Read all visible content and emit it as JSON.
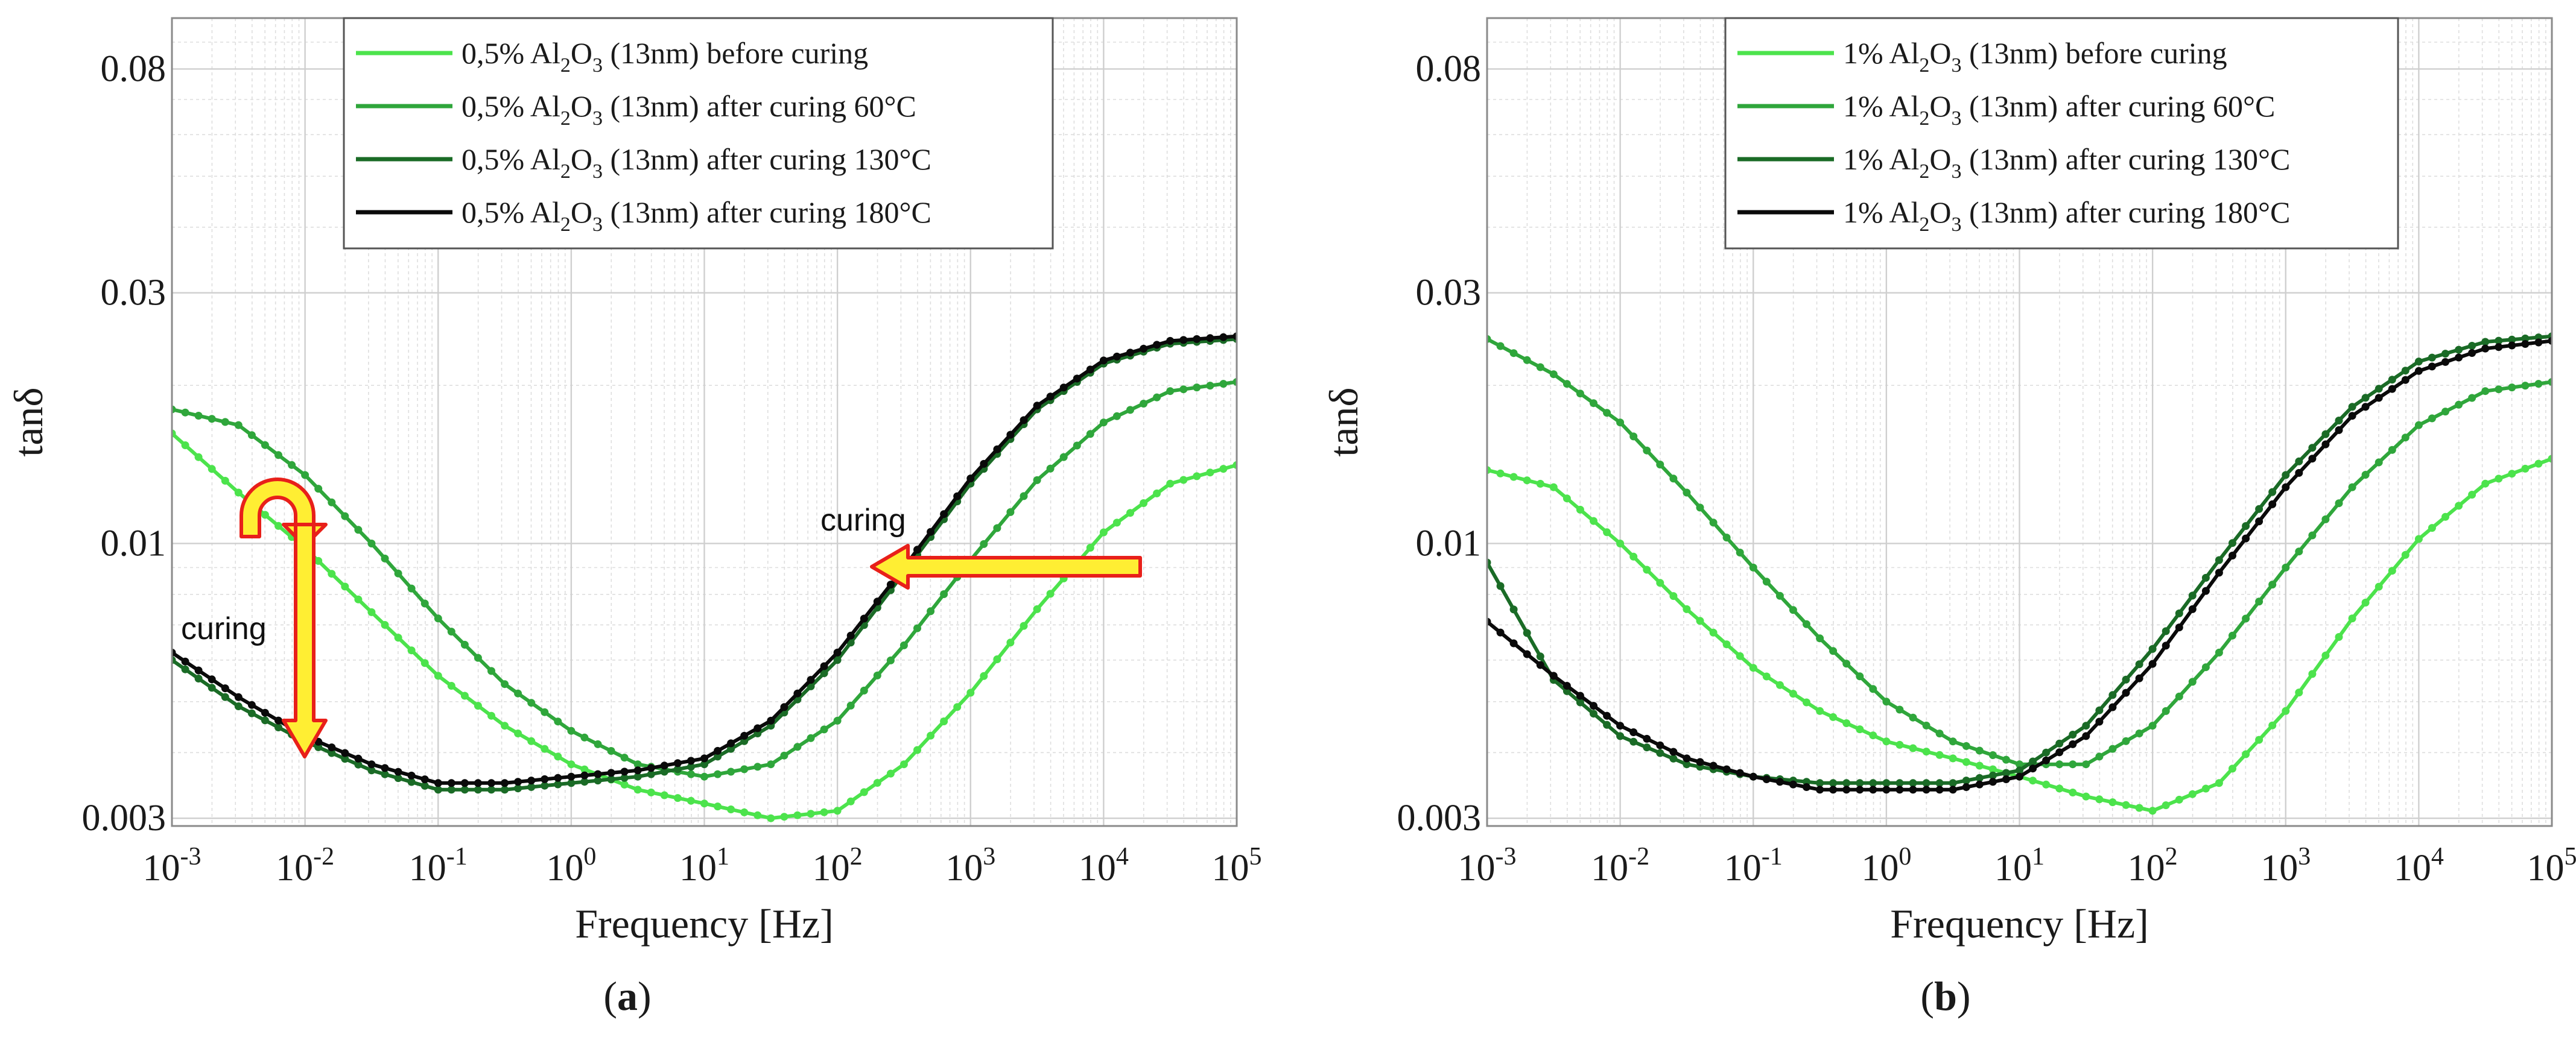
{
  "chart_data": [
    {
      "type": "line",
      "panel_label": "a",
      "title": "",
      "xlabel": "Frequency [Hz]",
      "ylabel": "tanδ",
      "xscale": "log",
      "yscale": "log",
      "xlim": [
        0.001,
        100000
      ],
      "ylim": [
        0.0029,
        0.1
      ],
      "x_ticks": [
        {
          "base": "10",
          "exp": "-3"
        },
        {
          "base": "10",
          "exp": "-2"
        },
        {
          "base": "10",
          "exp": "-1"
        },
        {
          "base": "10",
          "exp": "0"
        },
        {
          "base": "10",
          "exp": "1"
        },
        {
          "base": "10",
          "exp": "2"
        },
        {
          "base": "10",
          "exp": "3"
        },
        {
          "base": "10",
          "exp": "4"
        },
        {
          "base": "10",
          "exp": "5"
        }
      ],
      "y_ticks": [
        {
          "value": 0.003,
          "label": "0.003"
        },
        {
          "value": 0.01,
          "label": "0.01"
        },
        {
          "value": 0.03,
          "label": "0.03"
        },
        {
          "value": 0.08,
          "label": "0.08"
        }
      ],
      "grid": true,
      "legend_position": "top-center",
      "series": [
        {
          "name": "0,5% Al2O3 (13nm) before curing",
          "legend": {
            "pre": "0,5% Al",
            "sub1": "2",
            "mid": "O",
            "sub2": "3",
            "post": " (13nm) before curing"
          },
          "color": "#4ce34c",
          "points": [
            [
              -3,
              0.0162
            ],
            [
              -2.5,
              0.0125
            ],
            [
              -2,
              0.0098
            ],
            [
              -1.5,
              0.0074
            ],
            [
              -1,
              0.0056
            ],
            [
              -0.5,
              0.0045
            ],
            [
              0,
              0.0038
            ],
            [
              0.5,
              0.0034
            ],
            [
              1,
              0.0032
            ],
            [
              1.5,
              0.003
            ],
            [
              2,
              0.0031
            ],
            [
              2.5,
              0.0038
            ],
            [
              3,
              0.0052
            ],
            [
              3.5,
              0.0075
            ],
            [
              4,
              0.0105
            ],
            [
              4.5,
              0.013
            ],
            [
              5,
              0.0141
            ]
          ]
        },
        {
          "name": "0,5% Al2O3 (13nm) after curing 60°C",
          "legend": {
            "pre": "0,5% Al",
            "sub1": "2",
            "mid": "O",
            "sub2": "3",
            "post": " (13nm) after curing 60°C"
          },
          "color": "#2fa63b",
          "points": [
            [
              -3,
              0.018
            ],
            [
              -2.5,
              0.0168
            ],
            [
              -2,
              0.0135
            ],
            [
              -1.5,
              0.01
            ],
            [
              -1,
              0.0072
            ],
            [
              -0.5,
              0.0054
            ],
            [
              0,
              0.0044
            ],
            [
              0.5,
              0.0038
            ],
            [
              1,
              0.0036
            ],
            [
              1.5,
              0.0038
            ],
            [
              2,
              0.0046
            ],
            [
              2.5,
              0.0064
            ],
            [
              3,
              0.0093
            ],
            [
              3.5,
              0.0132
            ],
            [
              4,
              0.017
            ],
            [
              4.5,
              0.0195
            ],
            [
              5,
              0.0203
            ]
          ]
        },
        {
          "name": "0,5% Al2O3 (13nm) after curing 130°C",
          "legend": {
            "pre": "0,5% Al",
            "sub1": "2",
            "mid": "O",
            "sub2": "3",
            "post": " (13nm) after curing 130°C"
          },
          "color": "#1a6b26",
          "points": [
            [
              -3,
              0.006
            ],
            [
              -2.5,
              0.0049
            ],
            [
              -2,
              0.0042
            ],
            [
              -1.5,
              0.0037
            ],
            [
              -1,
              0.0034
            ],
            [
              -0.5,
              0.0034
            ],
            [
              0,
              0.0035
            ],
            [
              0.5,
              0.0036
            ],
            [
              1,
              0.0038
            ],
            [
              1.5,
              0.0045
            ],
            [
              2,
              0.006
            ],
            [
              2.5,
              0.0088
            ],
            [
              3,
              0.013
            ],
            [
              3.5,
              0.018
            ],
            [
              4,
              0.022
            ],
            [
              4.5,
              0.024
            ],
            [
              5,
              0.0245
            ]
          ]
        },
        {
          "name": "0,5% Al2O3 (13nm) after curing 180°C",
          "legend": {
            "pre": "0,5% Al",
            "sub1": "2",
            "mid": "O",
            "sub2": "3",
            "post": " (13nm) after curing 180°C"
          },
          "color": "#0a0a0a",
          "points": [
            [
              -3,
              0.0062
            ],
            [
              -2.5,
              0.0051
            ],
            [
              -2,
              0.0043
            ],
            [
              -1.5,
              0.0038
            ],
            [
              -1,
              0.0035
            ],
            [
              -0.5,
              0.0035
            ],
            [
              0,
              0.0036
            ],
            [
              0.5,
              0.0037
            ],
            [
              1,
              0.0039
            ],
            [
              1.5,
              0.0046
            ],
            [
              2,
              0.0062
            ],
            [
              2.5,
              0.009
            ],
            [
              3,
              0.0133
            ],
            [
              3.5,
              0.0183
            ],
            [
              4,
              0.0223
            ],
            [
              4.5,
              0.0243
            ],
            [
              5,
              0.0248
            ]
          ]
        }
      ],
      "annotations": [
        {
          "text": "curing",
          "note": "horizontal arrow pointing toward lower frequency"
        },
        {
          "text": "curing",
          "note": "curved arrow with downward arrow near 10^-2 Hz"
        }
      ]
    },
    {
      "type": "line",
      "panel_label": "b",
      "title": "",
      "xlabel": "Frequency [Hz]",
      "ylabel": "tanδ",
      "xscale": "log",
      "yscale": "log",
      "xlim": [
        0.001,
        100000
      ],
      "ylim": [
        0.0029,
        0.1
      ],
      "x_ticks": [
        {
          "base": "10",
          "exp": "-3"
        },
        {
          "base": "10",
          "exp": "-2"
        },
        {
          "base": "10",
          "exp": "-1"
        },
        {
          "base": "10",
          "exp": "0"
        },
        {
          "base": "10",
          "exp": "1"
        },
        {
          "base": "10",
          "exp": "2"
        },
        {
          "base": "10",
          "exp": "3"
        },
        {
          "base": "10",
          "exp": "4"
        },
        {
          "base": "10",
          "exp": "5"
        }
      ],
      "y_ticks": [
        {
          "value": 0.003,
          "label": "0.003"
        },
        {
          "value": 0.01,
          "label": "0.01"
        },
        {
          "value": 0.03,
          "label": "0.03"
        },
        {
          "value": 0.08,
          "label": "0.08"
        }
      ],
      "grid": true,
      "legend_position": "top-center",
      "series": [
        {
          "name": "1% Al2O3 (13nm) before curing",
          "legend": {
            "pre": "1% Al",
            "sub1": "2",
            "mid": "O",
            "sub2": "3",
            "post": " (13nm) before curing"
          },
          "color": "#4ce34c",
          "points": [
            [
              -3,
              0.0138
            ],
            [
              -2.5,
              0.0128
            ],
            [
              -2,
              0.01
            ],
            [
              -1.5,
              0.0075
            ],
            [
              -1,
              0.0058
            ],
            [
              -0.5,
              0.0048
            ],
            [
              0,
              0.0042
            ],
            [
              0.5,
              0.0039
            ],
            [
              1,
              0.0036
            ],
            [
              1.5,
              0.0033
            ],
            [
              2,
              0.0031
            ],
            [
              2.5,
              0.0035
            ],
            [
              3,
              0.0048
            ],
            [
              3.5,
              0.0072
            ],
            [
              4,
              0.0102
            ],
            [
              4.5,
              0.013
            ],
            [
              5,
              0.0145
            ]
          ]
        },
        {
          "name": "1% Al2O3 (13nm) after curing 60°C",
          "legend": {
            "pre": "1% Al",
            "sub1": "2",
            "mid": "O",
            "sub2": "3",
            "post": " (13nm) after curing 60°C"
          },
          "color": "#2fa63b",
          "points": [
            [
              -3,
              0.0245
            ],
            [
              -2.5,
              0.021
            ],
            [
              -2,
              0.017
            ],
            [
              -1.5,
              0.0125
            ],
            [
              -1,
              0.009
            ],
            [
              -0.5,
              0.0066
            ],
            [
              0,
              0.005
            ],
            [
              0.5,
              0.0042
            ],
            [
              1,
              0.0038
            ],
            [
              1.5,
              0.0038
            ],
            [
              2,
              0.0045
            ],
            [
              2.5,
              0.0062
            ],
            [
              3,
              0.009
            ],
            [
              3.5,
              0.0128
            ],
            [
              4,
              0.0168
            ],
            [
              4.5,
              0.0195
            ],
            [
              5,
              0.0203
            ]
          ]
        },
        {
          "name": "1% Al2O3 (13nm) after curing 130°C",
          "legend": {
            "pre": "1% Al",
            "sub1": "2",
            "mid": "O",
            "sub2": "3",
            "post": " (13nm) after curing 130°C"
          },
          "color": "#1a6b26",
          "points": [
            [
              -3,
              0.0092
            ],
            [
              -2.5,
              0.0055
            ],
            [
              -2,
              0.0043
            ],
            [
              -1.5,
              0.0038
            ],
            [
              -1,
              0.0036
            ],
            [
              -0.5,
              0.0035
            ],
            [
              0,
              0.0035
            ],
            [
              0.5,
              0.0035
            ],
            [
              1,
              0.0037
            ],
            [
              1.5,
              0.0045
            ],
            [
              2,
              0.0063
            ],
            [
              2.5,
              0.0093
            ],
            [
              3,
              0.0135
            ],
            [
              3.5,
              0.0182
            ],
            [
              4,
              0.0222
            ],
            [
              4.5,
              0.0242
            ],
            [
              5,
              0.0248
            ]
          ]
        },
        {
          "name": "1% Al2O3 (13nm) after curing 180°C",
          "legend": {
            "pre": "1% Al",
            "sub1": "2",
            "mid": "O",
            "sub2": "3",
            "post": " (13nm) after curing 180°C"
          },
          "color": "#0a0a0a",
          "points": [
            [
              -3,
              0.0071
            ],
            [
              -2.5,
              0.0056
            ],
            [
              -2,
              0.0045
            ],
            [
              -1.5,
              0.0039
            ],
            [
              -1,
              0.0036
            ],
            [
              -0.5,
              0.0034
            ],
            [
              0,
              0.0034
            ],
            [
              0.5,
              0.0034
            ],
            [
              1,
              0.0036
            ],
            [
              1.5,
              0.0043
            ],
            [
              2,
              0.0059
            ],
            [
              2.5,
              0.0088
            ],
            [
              3,
              0.0128
            ],
            [
              3.5,
              0.0175
            ],
            [
              4,
              0.0213
            ],
            [
              4.5,
              0.0235
            ],
            [
              5,
              0.0243
            ]
          ]
        }
      ]
    }
  ]
}
